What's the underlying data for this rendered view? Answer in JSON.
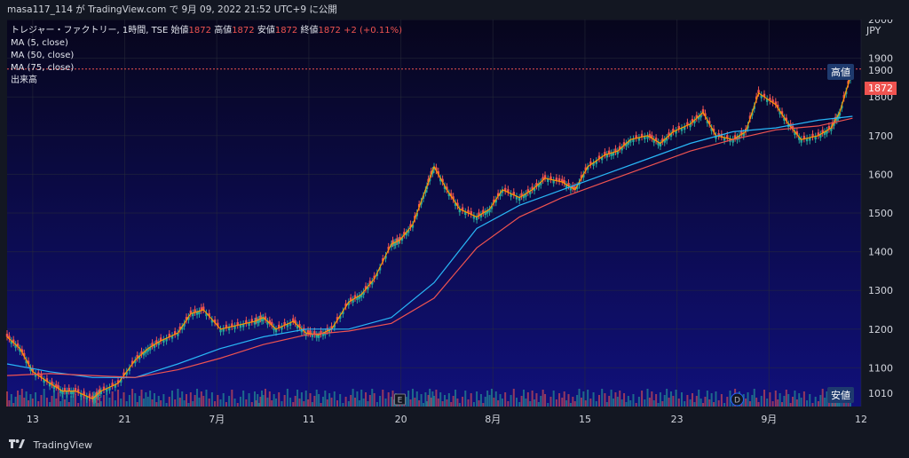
{
  "header": {
    "publish_text": "masa117_114 が TradingView.com で 9月 09, 2022 21:52 UTC+9 に公開"
  },
  "legend": {
    "symbol": "トレジャー・ファクトリー, 1時間, TSE",
    "open_label": "始値",
    "open_value": "1872",
    "high_label": "高値",
    "high_value": "1872",
    "low_label": "安値",
    "low_value": "1872",
    "close_label": "終値",
    "close_value": "1872",
    "change": "+2 (+0.11%)",
    "ma5": "MA (5, close)",
    "ma50": "MA (50, close)",
    "ma75": "MA (75, close)",
    "volume": "出来高"
  },
  "axis": {
    "currency": "JPY",
    "high_tag": "高値",
    "high_tag_value": "1900",
    "low_tag": "安値",
    "low_tag_value": "1010",
    "last_price": "1872"
  },
  "footer": {
    "brand": "TradingView"
  },
  "colors": {
    "background": "#0d0c3a",
    "grid": "#2a2e39",
    "up": "#26a69a",
    "down": "#ef5350",
    "ma5": "#ff9800",
    "ma50": "#29b6f6",
    "ma75": "#ef5350",
    "last_price": "#ef5350",
    "tag": "#1e3a6e"
  },
  "chart_data": {
    "type": "line",
    "title": "トレジャー・ファクトリー, 1時間, TSE",
    "ylabel": "JPY",
    "ylim": [
      1000,
      2000
    ],
    "y_ticks": [
      1100,
      1200,
      1300,
      1400,
      1500,
      1600,
      1700,
      1800,
      1900,
      2000
    ],
    "x_tick_labels": [
      "13",
      "21",
      "7月",
      "11",
      "20",
      "8月",
      "15",
      "23",
      "9月",
      "12"
    ],
    "grid": true,
    "events": [
      {
        "label": "E",
        "x": 9.2
      },
      {
        "label": "D",
        "x": 17.1
      }
    ],
    "series": [
      {
        "name": "price",
        "x": [
          0,
          0.3,
          0.6,
          1,
          1.3,
          1.6,
          2,
          2.2,
          2.6,
          3,
          3.3,
          3.6,
          4,
          4.3,
          4.6,
          5,
          5.4,
          5.8,
          6,
          6.3,
          6.7,
          7,
          7.3,
          7.6,
          8,
          8.3,
          8.6,
          9,
          9.2,
          9.5,
          9.8,
          10,
          10.3,
          10.6,
          11,
          11.3,
          11.6,
          12,
          12.3,
          12.6,
          13,
          13.3,
          13.6,
          14,
          14.3,
          14.6,
          15,
          15.3,
          15.6,
          16,
          16.3,
          16.6,
          17,
          17.3,
          17.6,
          18,
          18.3,
          18.6,
          19,
          19.3,
          19.5,
          19.8
        ],
        "values": [
          1180,
          1150,
          1090,
          1060,
          1040,
          1040,
          1020,
          1040,
          1060,
          1120,
          1150,
          1170,
          1190,
          1240,
          1250,
          1200,
          1210,
          1220,
          1230,
          1200,
          1220,
          1190,
          1185,
          1200,
          1270,
          1290,
          1330,
          1420,
          1430,
          1470,
          1560,
          1620,
          1560,
          1510,
          1490,
          1510,
          1560,
          1540,
          1560,
          1590,
          1580,
          1560,
          1620,
          1650,
          1660,
          1690,
          1700,
          1680,
          1710,
          1730,
          1760,
          1700,
          1690,
          1710,
          1810,
          1780,
          1730,
          1690,
          1700,
          1720,
          1760,
          1870
        ]
      },
      {
        "name": "MA (50, close)",
        "x": [
          0,
          1,
          2,
          3,
          4,
          5,
          6,
          7,
          8,
          9,
          10,
          11,
          12,
          13,
          14,
          15,
          16,
          17,
          18,
          19,
          19.8
        ],
        "values": [
          1110,
          1090,
          1075,
          1075,
          1110,
          1150,
          1180,
          1200,
          1200,
          1230,
          1320,
          1460,
          1520,
          1560,
          1600,
          1640,
          1680,
          1710,
          1720,
          1740,
          1750
        ]
      },
      {
        "name": "MA (75, close)",
        "x": [
          0,
          1,
          2,
          3,
          4,
          5,
          6,
          7,
          8,
          9,
          10,
          11,
          12,
          13,
          14,
          15,
          16,
          17,
          18,
          19,
          19.8
        ],
        "values": [
          1080,
          1085,
          1080,
          1075,
          1095,
          1125,
          1160,
          1185,
          1195,
          1215,
          1280,
          1410,
          1490,
          1540,
          1580,
          1620,
          1660,
          1690,
          1715,
          1725,
          1745
        ]
      }
    ]
  }
}
